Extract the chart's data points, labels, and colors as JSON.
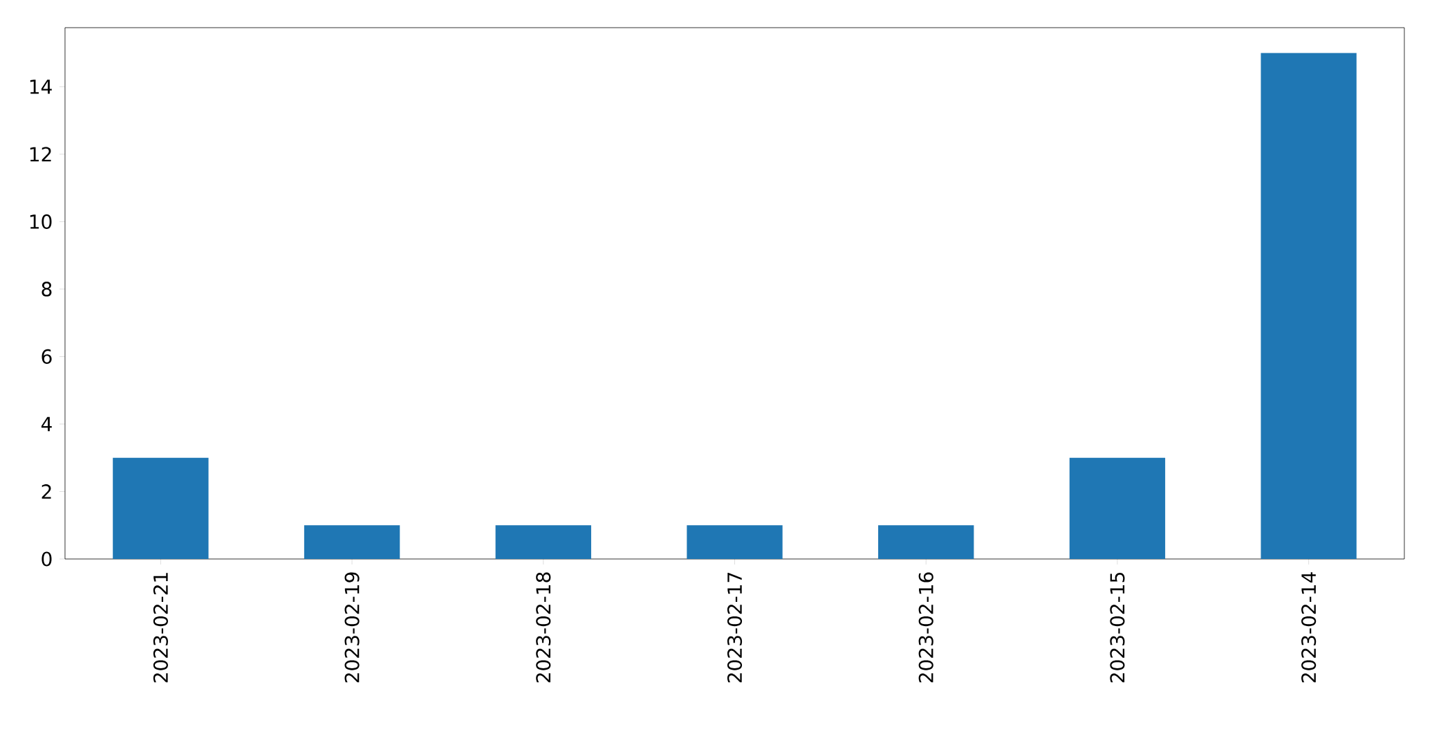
{
  "chart_data": {
    "type": "bar",
    "categories": [
      "2023-02-21",
      "2023-02-19",
      "2023-02-18",
      "2023-02-17",
      "2023-02-16",
      "2023-02-15",
      "2023-02-14"
    ],
    "values": [
      3,
      1,
      1,
      1,
      1,
      3,
      15
    ],
    "color": "#1f77b4",
    "ylim": [
      0,
      15.75
    ],
    "yticks": [
      0,
      2,
      4,
      6,
      8,
      10,
      12,
      14
    ]
  }
}
